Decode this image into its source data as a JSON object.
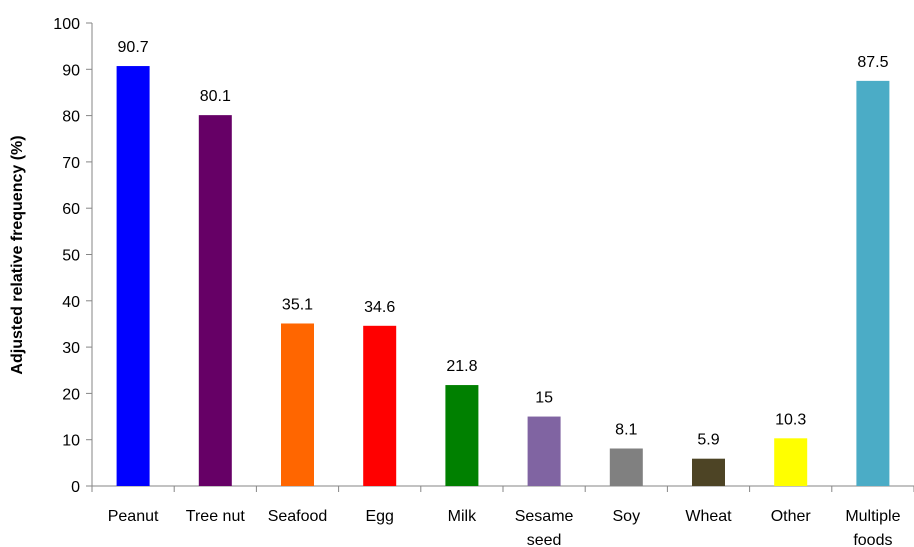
{
  "chart_data": {
    "type": "bar",
    "title": "",
    "xlabel": "",
    "ylabel": "Adjusted relative frequency (%)",
    "ylim": [
      0,
      100
    ],
    "yticks": [
      0,
      10,
      20,
      30,
      40,
      50,
      60,
      70,
      80,
      90,
      100
    ],
    "grid": false,
    "legend": "none",
    "categories": [
      [
        "Peanut"
      ],
      [
        "Tree nut"
      ],
      [
        "Seafood"
      ],
      [
        "Egg"
      ],
      [
        "Milk"
      ],
      [
        "Sesame",
        "seed"
      ],
      [
        "Soy"
      ],
      [
        "Wheat"
      ],
      [
        "Other"
      ],
      [
        "Multiple",
        "foods"
      ]
    ],
    "values": [
      90.7,
      80.1,
      35.1,
      34.6,
      21.8,
      15,
      8.1,
      5.9,
      10.3,
      87.5
    ],
    "data_labels": [
      "90.7",
      "80.1",
      "35.1",
      "34.6",
      "21.8",
      "15",
      "8.1",
      "5.9",
      "10.3",
      "87.5"
    ],
    "colors": [
      "#0000FF",
      "#660066",
      "#FF6600",
      "#FF0000",
      "#008000",
      "#8064A2",
      "#808080",
      "#4D4425",
      "#FFFF00",
      "#4BACC6"
    ]
  }
}
